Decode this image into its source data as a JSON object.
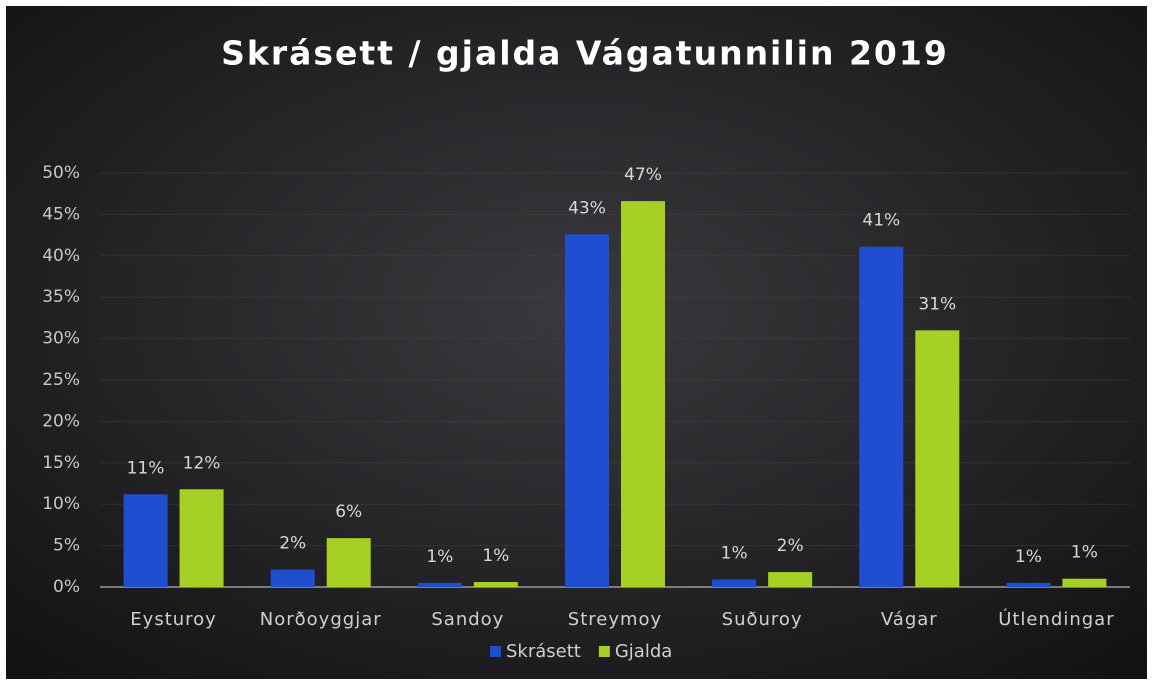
{
  "chart_data": {
    "type": "bar",
    "title": "Skrásett / gjalda Vágatunnilin 2019",
    "categories": [
      "Eysturoy",
      "Norðoyggjar",
      "Sandoy",
      "Streymoy",
      "Suðuroy",
      "Vágar",
      "Útlendingar"
    ],
    "series": [
      {
        "name": "Skrásett",
        "color": "#1f4fd0",
        "values": [
          11.2,
          2.1,
          0.5,
          42.6,
          0.9,
          41.1,
          0.5
        ],
        "value_labels": [
          "11%",
          "2%",
          "1%",
          "43%",
          "1%",
          "41%",
          "1%"
        ]
      },
      {
        "name": "Gjalda",
        "color": "#a6d024",
        "values": [
          11.8,
          5.9,
          0.6,
          46.6,
          1.8,
          31.0,
          1.0
        ],
        "value_labels": [
          "12%",
          "6%",
          "1%",
          "47%",
          "2%",
          "31%",
          "1%"
        ]
      }
    ],
    "ylim": [
      0,
      50
    ],
    "yticks": [
      {
        "value": 0,
        "label": "0%"
      },
      {
        "value": 5,
        "label": "5%"
      },
      {
        "value": 10,
        "label": "10%"
      },
      {
        "value": 15,
        "label": "15%"
      },
      {
        "value": 20,
        "label": "20%"
      },
      {
        "value": 25,
        "label": "25%"
      },
      {
        "value": 30,
        "label": "30%"
      },
      {
        "value": 35,
        "label": "35%"
      },
      {
        "value": 40,
        "label": "40%"
      },
      {
        "value": 45,
        "label": "45%"
      },
      {
        "value": 50,
        "label": "50%"
      }
    ],
    "legend": "bottom"
  }
}
